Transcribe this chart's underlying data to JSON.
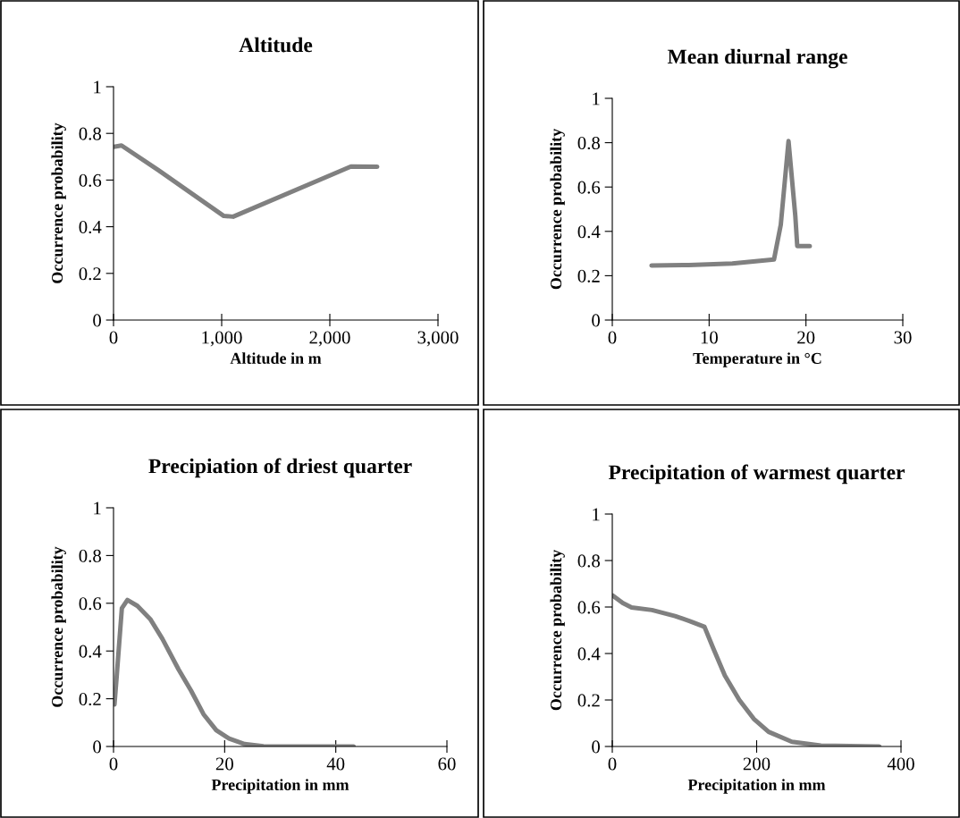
{
  "chart_data": [
    {
      "type": "line",
      "title": "Altitude",
      "xlabel": "Altitude in m",
      "ylabel": "Occurrence probability",
      "xlim": [
        0,
        3000
      ],
      "xticks": [
        0,
        {
          "value": 1000,
          "label": "1,000"
        },
        {
          "value": 2000,
          "label": "2,000"
        },
        {
          "value": 3000,
          "label": "3,000"
        }
      ],
      "ylim": [
        0,
        1
      ],
      "yticks": [
        0,
        0.2,
        0.4,
        0.6,
        0.8,
        1
      ],
      "marker": "none",
      "line_style": "solid",
      "series": [
        {
          "color": "#808080",
          "x": [
            0,
            74,
            418,
            1020,
            1106,
            2195,
            2438
          ],
          "values": [
            0.742,
            0.748,
            0.641,
            0.446,
            0.443,
            0.658,
            0.657
          ]
        }
      ]
    },
    {
      "type": "line",
      "title": "Mean diurnal range",
      "xlabel": "Temperature in °C",
      "ylabel": "Occurrence probability",
      "xlim": [
        0,
        30
      ],
      "xticks": [
        0,
        10,
        20,
        30
      ],
      "ylim": [
        0,
        1
      ],
      "yticks": [
        0,
        0.2,
        0.4,
        0.6,
        0.8,
        1
      ],
      "marker": "none",
      "line_style": "solid",
      "series": [
        {
          "color": "#808080",
          "x": [
            4.05,
            7.9,
            12.4,
            16.7,
            17.4,
            18.2,
            18.9,
            19.1,
            20.4
          ],
          "values": [
            0.246,
            0.248,
            0.255,
            0.273,
            0.43,
            0.807,
            0.47,
            0.334,
            0.334
          ]
        }
      ]
    },
    {
      "type": "line",
      "title": "Precipiation of driest quarter",
      "xlabel": "Precipitation in mm",
      "ylabel": "Occurrence probability",
      "xlim": [
        0,
        60
      ],
      "xticks": [
        0,
        20,
        40,
        60
      ],
      "ylim": [
        0,
        1
      ],
      "yticks": [
        0,
        0.2,
        0.4,
        0.6,
        0.8,
        1
      ],
      "marker": "none",
      "line_style": "solid",
      "series": [
        {
          "color": "#808080",
          "x": [
            0.17,
            0.5,
            1.5,
            2.5,
            4.3,
            6.6,
            8.8,
            11.7,
            13.95,
            16.2,
            18.5,
            20.8,
            23.6,
            27,
            35.5,
            43.2
          ],
          "values": [
            0.176,
            0.272,
            0.579,
            0.614,
            0.589,
            0.534,
            0.451,
            0.323,
            0.234,
            0.135,
            0.068,
            0.033,
            0.01,
            0.001,
            0,
            0
          ]
        }
      ]
    },
    {
      "type": "line",
      "title": "Precipitation of warmest quarter",
      "xlabel": "Precipitation in mm",
      "ylabel": "Occurrence probability",
      "xlim": [
        0,
        400
      ],
      "xticks": [
        0,
        200,
        400
      ],
      "ylim": [
        0,
        1
      ],
      "yticks": [
        0,
        0.2,
        0.4,
        0.6,
        0.8,
        1
      ],
      "marker": "none",
      "line_style": "solid",
      "series": [
        {
          "color": "#808080",
          "x": [
            0.8,
            14.5,
            26.7,
            55,
            87,
            107.5,
            127.7,
            139.8,
            156,
            176,
            196,
            216.6,
            248.9,
            289,
            370
          ],
          "values": [
            0.649,
            0.617,
            0.598,
            0.587,
            0.561,
            0.539,
            0.515,
            0.423,
            0.305,
            0.2,
            0.119,
            0.063,
            0.02,
            0.004,
            0
          ]
        }
      ]
    }
  ]
}
